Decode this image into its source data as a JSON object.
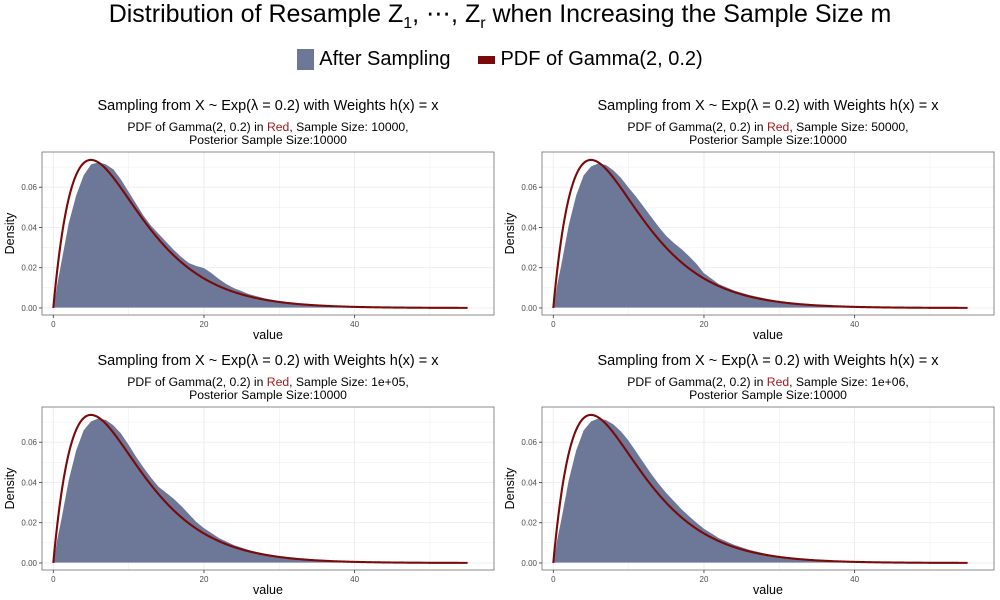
{
  "figure": {
    "title_main": "Distribution of Resample Z",
    "title_sub1": "1",
    "title_mid": ", ⋯, Z",
    "title_subr": "r",
    "title_end": " when Increasing the Sample Size m"
  },
  "legend": {
    "items": [
      {
        "label": "After Sampling",
        "color": "#6d7899",
        "kind": "fill"
      },
      {
        "label": "PDF of Gamma(2, 0.2)",
        "color": "#7a0a0a",
        "kind": "line"
      }
    ]
  },
  "colors": {
    "fill": "#6d7899",
    "line": "#7a0a0a",
    "red_word": "#a31a1a",
    "grid": "#ebebeb",
    "panel_border": "#7f7f7f"
  },
  "panel_text": {
    "title_pre": "Sampling from X ~ Exp(",
    "title_lambda": "λ",
    "title_mid": " = 0.2) with Weights h(x) = x",
    "sub_pre": "PDF of Gamma(2, 0.2) in ",
    "sub_red": "Red",
    "sub_line2": "Posterior Sample Size:10000",
    "xlabel": "value",
    "ylabel": "Density"
  },
  "chart_data": [
    {
      "type": "area",
      "sample_size_label": ", Sample Size: 10000,",
      "xlim": [
        -1.5,
        58.5
      ],
      "ylim": [
        -0.0035,
        0.0775
      ],
      "x_ticks": [
        0,
        20,
        40
      ],
      "y_ticks": [
        0.0,
        0.02,
        0.04,
        0.06
      ],
      "x_tick_labels": [
        "0",
        "20",
        "40"
      ],
      "y_tick_labels": [
        "0.00",
        "0.02",
        "0.04",
        "0.06"
      ],
      "grid": true,
      "gamma_pdf": {
        "shape": 2,
        "rate": 0.2,
        "x_range": [
          0,
          55
        ]
      },
      "density": {
        "x": [
          0,
          0.5,
          1,
          2,
          3,
          4,
          5,
          6,
          7,
          8,
          9,
          10,
          11,
          12,
          13,
          14,
          15,
          16,
          17,
          18,
          19,
          20,
          21,
          22,
          23,
          24,
          25,
          26,
          28,
          30,
          32,
          34,
          35,
          36,
          38,
          40,
          45,
          50,
          55
        ],
        "y": [
          0,
          0.012,
          0.022,
          0.042,
          0.056,
          0.066,
          0.0715,
          0.0725,
          0.0715,
          0.069,
          0.064,
          0.058,
          0.052,
          0.046,
          0.041,
          0.037,
          0.033,
          0.029,
          0.0255,
          0.0225,
          0.021,
          0.02,
          0.0175,
          0.0145,
          0.012,
          0.01,
          0.0085,
          0.007,
          0.005,
          0.0035,
          0.0025,
          0.002,
          0.0019,
          0.0015,
          0.0009,
          0.0006,
          0.0003,
          0.0001,
          0
        ]
      }
    },
    {
      "type": "area",
      "sample_size_label": ", Sample Size: 50000,",
      "xlim": [
        -1.5,
        58.5
      ],
      "ylim": [
        -0.0035,
        0.0775
      ],
      "x_ticks": [
        0,
        20,
        40
      ],
      "y_ticks": [
        0.0,
        0.02,
        0.04,
        0.06
      ],
      "x_tick_labels": [
        "0",
        "20",
        "40"
      ],
      "y_tick_labels": [
        "0.00",
        "0.02",
        "0.04",
        "0.06"
      ],
      "grid": true,
      "gamma_pdf": {
        "shape": 2,
        "rate": 0.2,
        "x_range": [
          0,
          55
        ]
      },
      "density": {
        "x": [
          0,
          0.5,
          1,
          2,
          3,
          4,
          5,
          6,
          7,
          8,
          9,
          10,
          11,
          12,
          13,
          14,
          15,
          16,
          17,
          18,
          19,
          20,
          22,
          24,
          26,
          28,
          30,
          35,
          40,
          45,
          50,
          55
        ],
        "y": [
          0,
          0.012,
          0.021,
          0.041,
          0.056,
          0.066,
          0.0705,
          0.072,
          0.0712,
          0.0685,
          0.0648,
          0.06,
          0.0555,
          0.0505,
          0.0455,
          0.0405,
          0.036,
          0.0325,
          0.0295,
          0.026,
          0.0222,
          0.0175,
          0.012,
          0.0088,
          0.0066,
          0.005,
          0.0035,
          0.0015,
          0.0006,
          0.0003,
          0.0001,
          0
        ]
      }
    },
    {
      "type": "area",
      "sample_size_label": ", Sample Size: 1e+05,",
      "xlim": [
        -1.5,
        58.5
      ],
      "ylim": [
        -0.0035,
        0.0775
      ],
      "x_ticks": [
        0,
        20,
        40
      ],
      "y_ticks": [
        0.0,
        0.02,
        0.04,
        0.06
      ],
      "x_tick_labels": [
        "0",
        "20",
        "40"
      ],
      "y_tick_labels": [
        "0.00",
        "0.02",
        "0.04",
        "0.06"
      ],
      "grid": true,
      "gamma_pdf": {
        "shape": 2,
        "rate": 0.2,
        "x_range": [
          0,
          55
        ]
      },
      "density": {
        "x": [
          0,
          0.5,
          1,
          2,
          3,
          4,
          5,
          6,
          7,
          8,
          9,
          10,
          11,
          12,
          13,
          14,
          15,
          16,
          17,
          18,
          19,
          20,
          22,
          24,
          26,
          28,
          30,
          35,
          40,
          45,
          50,
          55
        ],
        "y": [
          0,
          0.012,
          0.021,
          0.041,
          0.056,
          0.066,
          0.0705,
          0.072,
          0.0712,
          0.0685,
          0.0645,
          0.059,
          0.053,
          0.0475,
          0.0425,
          0.038,
          0.035,
          0.032,
          0.0285,
          0.0245,
          0.0205,
          0.0175,
          0.0125,
          0.009,
          0.0065,
          0.0048,
          0.0035,
          0.0015,
          0.0006,
          0.0003,
          0.0001,
          0
        ]
      }
    },
    {
      "type": "area",
      "sample_size_label": ", Sample Size: 1e+06,",
      "xlim": [
        -1.5,
        58.5
      ],
      "ylim": [
        -0.0035,
        0.0775
      ],
      "x_ticks": [
        0,
        20,
        40
      ],
      "y_ticks": [
        0.0,
        0.02,
        0.04,
        0.06
      ],
      "x_tick_labels": [
        "0",
        "20",
        "40"
      ],
      "y_tick_labels": [
        "0.00",
        "0.02",
        "0.04",
        "0.06"
      ],
      "grid": true,
      "gamma_pdf": {
        "shape": 2,
        "rate": 0.2,
        "x_range": [
          0,
          55
        ]
      },
      "density": {
        "x": [
          0,
          0.5,
          1,
          2,
          3,
          4,
          5,
          6,
          7,
          8,
          9,
          10,
          11,
          12,
          13,
          14,
          15,
          16,
          17,
          18,
          19,
          20,
          22,
          24,
          26,
          28,
          30,
          35,
          40,
          45,
          50,
          55
        ],
        "y": [
          0,
          0.012,
          0.021,
          0.041,
          0.056,
          0.066,
          0.0705,
          0.072,
          0.0712,
          0.069,
          0.0655,
          0.061,
          0.0555,
          0.05,
          0.0445,
          0.0395,
          0.035,
          0.031,
          0.027,
          0.0235,
          0.0202,
          0.0172,
          0.0125,
          0.0092,
          0.0067,
          0.0049,
          0.0035,
          0.0015,
          0.0006,
          0.0003,
          0.0001,
          0
        ]
      }
    }
  ]
}
